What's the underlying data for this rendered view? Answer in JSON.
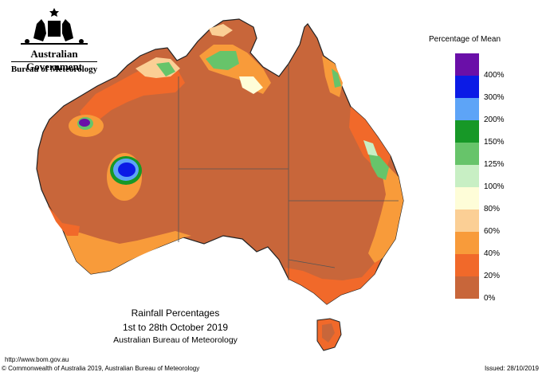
{
  "header": {
    "government": "Australian Government",
    "bureau": "Bureau of Meteorology"
  },
  "map": {
    "title_line1": "Rainfall Percentages",
    "title_line2": "1st to 28th October 2019",
    "title_line3": "Australian Bureau of Meteorology",
    "region": "Australia",
    "base_color": "#c8663a"
  },
  "legend": {
    "title": "Percentage of Mean",
    "bands": [
      {
        "label": "400%",
        "color": "#6a0fa8"
      },
      {
        "label": "300%",
        "color": "#0b1be6"
      },
      {
        "label": "200%",
        "color": "#5da4f7"
      },
      {
        "label": "150%",
        "color": "#179827"
      },
      {
        "label": "125%",
        "color": "#67c46a"
      },
      {
        "label": "100%",
        "color": "#c8efc4"
      },
      {
        "label": "80%",
        "color": "#fefdd8"
      },
      {
        "label": "60%",
        "color": "#fbcf95"
      },
      {
        "label": "40%",
        "color": "#f89b3a"
      },
      {
        "label": "20%",
        "color": "#f1692a"
      },
      {
        "label": "0%",
        "color": "#c8663a"
      }
    ]
  },
  "footer": {
    "url": "http://www.bom.gov.au",
    "copyright": "© Commonwealth of Australia 2019, Australian Bureau of Meteorology",
    "issued": "Issued: 28/10/2019"
  }
}
